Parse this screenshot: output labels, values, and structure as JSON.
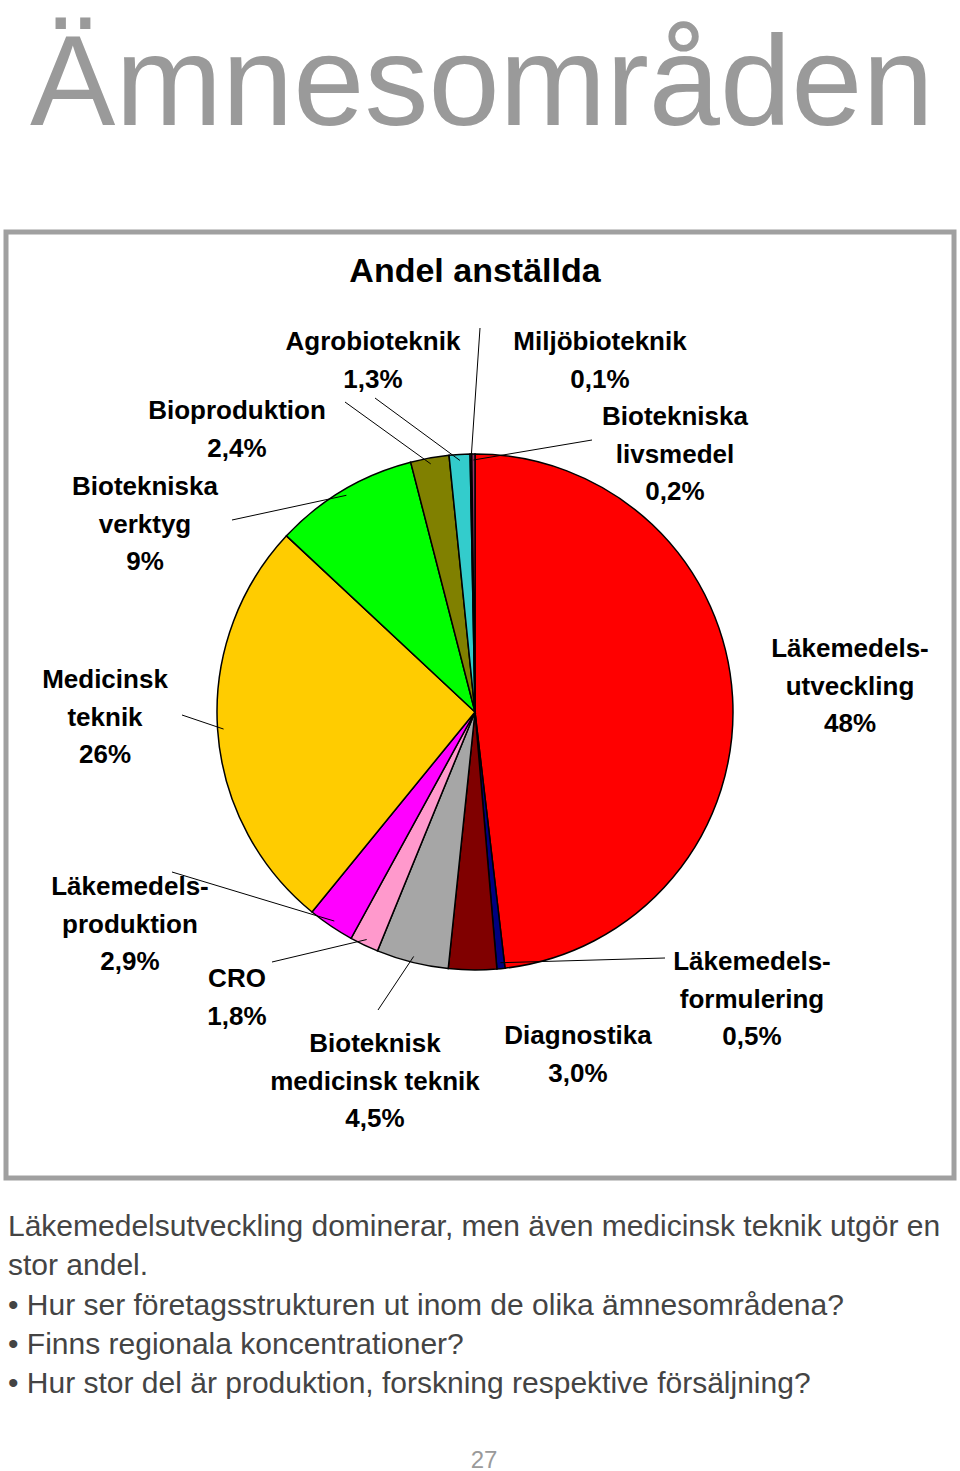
{
  "heading": "Ämnesområden",
  "chart_data": {
    "type": "pie",
    "title": "Andel anställda",
    "categories": [
      "Läkemedels-utveckling",
      "Läkemedels-formulering",
      "Diagnostika",
      "Bioteknisk medicinsk teknik",
      "CRO",
      "Läkemedels-produktion",
      "Medicinsk teknik",
      "Biotekniska verktyg",
      "Bioproduktion",
      "Agrobioteknik",
      "Miljöbioteknik",
      "Biotekniska livsmedel"
    ],
    "values": [
      48,
      0.5,
      3.0,
      4.5,
      1.8,
      2.9,
      26,
      9,
      2.4,
      1.3,
      0.1,
      0.2
    ],
    "value_labels": [
      "48%",
      "0,5%",
      "3,0%",
      "4,5%",
      "1,8%",
      "2,9%",
      "26%",
      "9%",
      "2,4%",
      "1,3%",
      "0,1%",
      "0,2%"
    ],
    "colors": [
      "#ff0000",
      "#000080",
      "#800000",
      "#a6a6a6",
      "#ff99cc",
      "#ff00ff",
      "#ffcc00",
      "#00ff00",
      "#808000",
      "#33cccc",
      "#ccffff",
      "#993366"
    ],
    "data_labels": true
  },
  "caption": "Läkemedelsutveckling dominerar, men även medicinsk teknik utgör en stor andel.",
  "bullets": [
    "Hur ser företagsstrukturen ut inom de olika ämnesområdena?",
    "Finns regionala koncentrationer?",
    "Hur stor del är produktion, forskning respektive försäljning?"
  ],
  "page_number": 27
}
